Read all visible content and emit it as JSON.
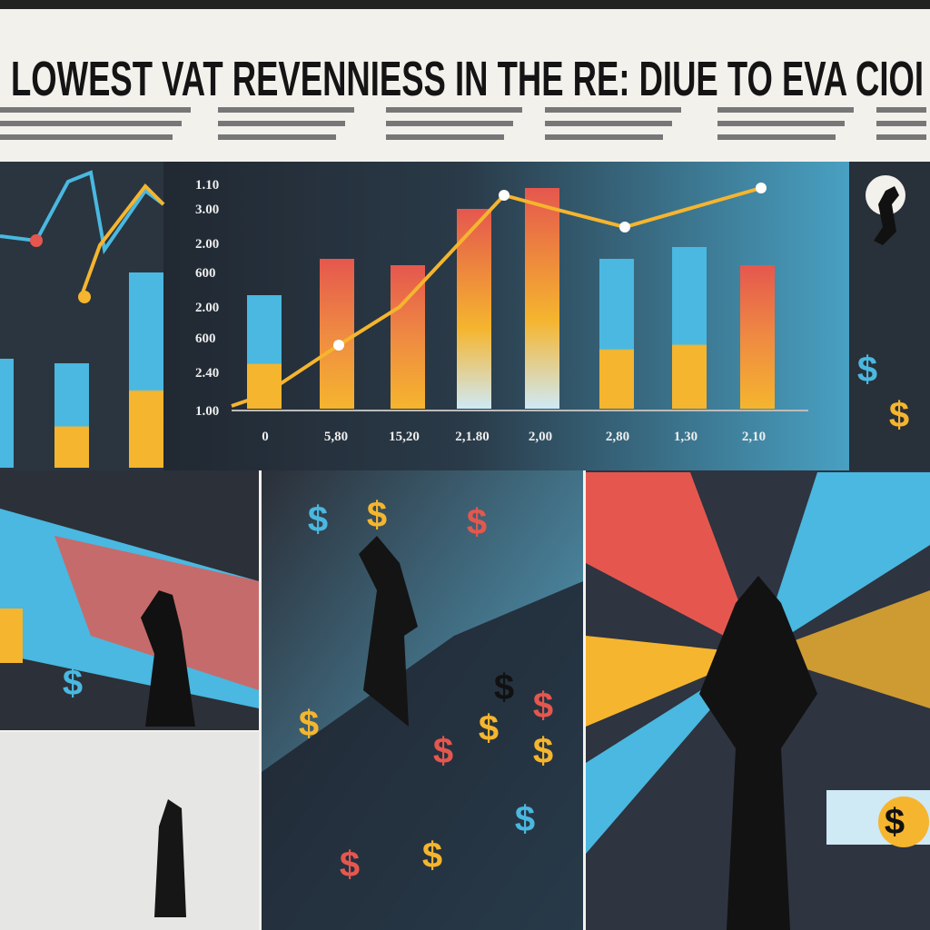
{
  "header": {
    "title": "LOWEST VAT REVENNIESS IN THE RE: DIUE TO EVA CIOI"
  },
  "chart": {
    "y_labels": [
      "1.10",
      "3.00",
      "2.00",
      "600",
      "2.00",
      "600",
      "2.40",
      "1.00"
    ],
    "x_labels": [
      "0",
      "5,80",
      "15,20",
      "2,1.80",
      "2,00",
      "2,80",
      "1,30",
      "2,10"
    ]
  },
  "icon_symbol": "$"
}
